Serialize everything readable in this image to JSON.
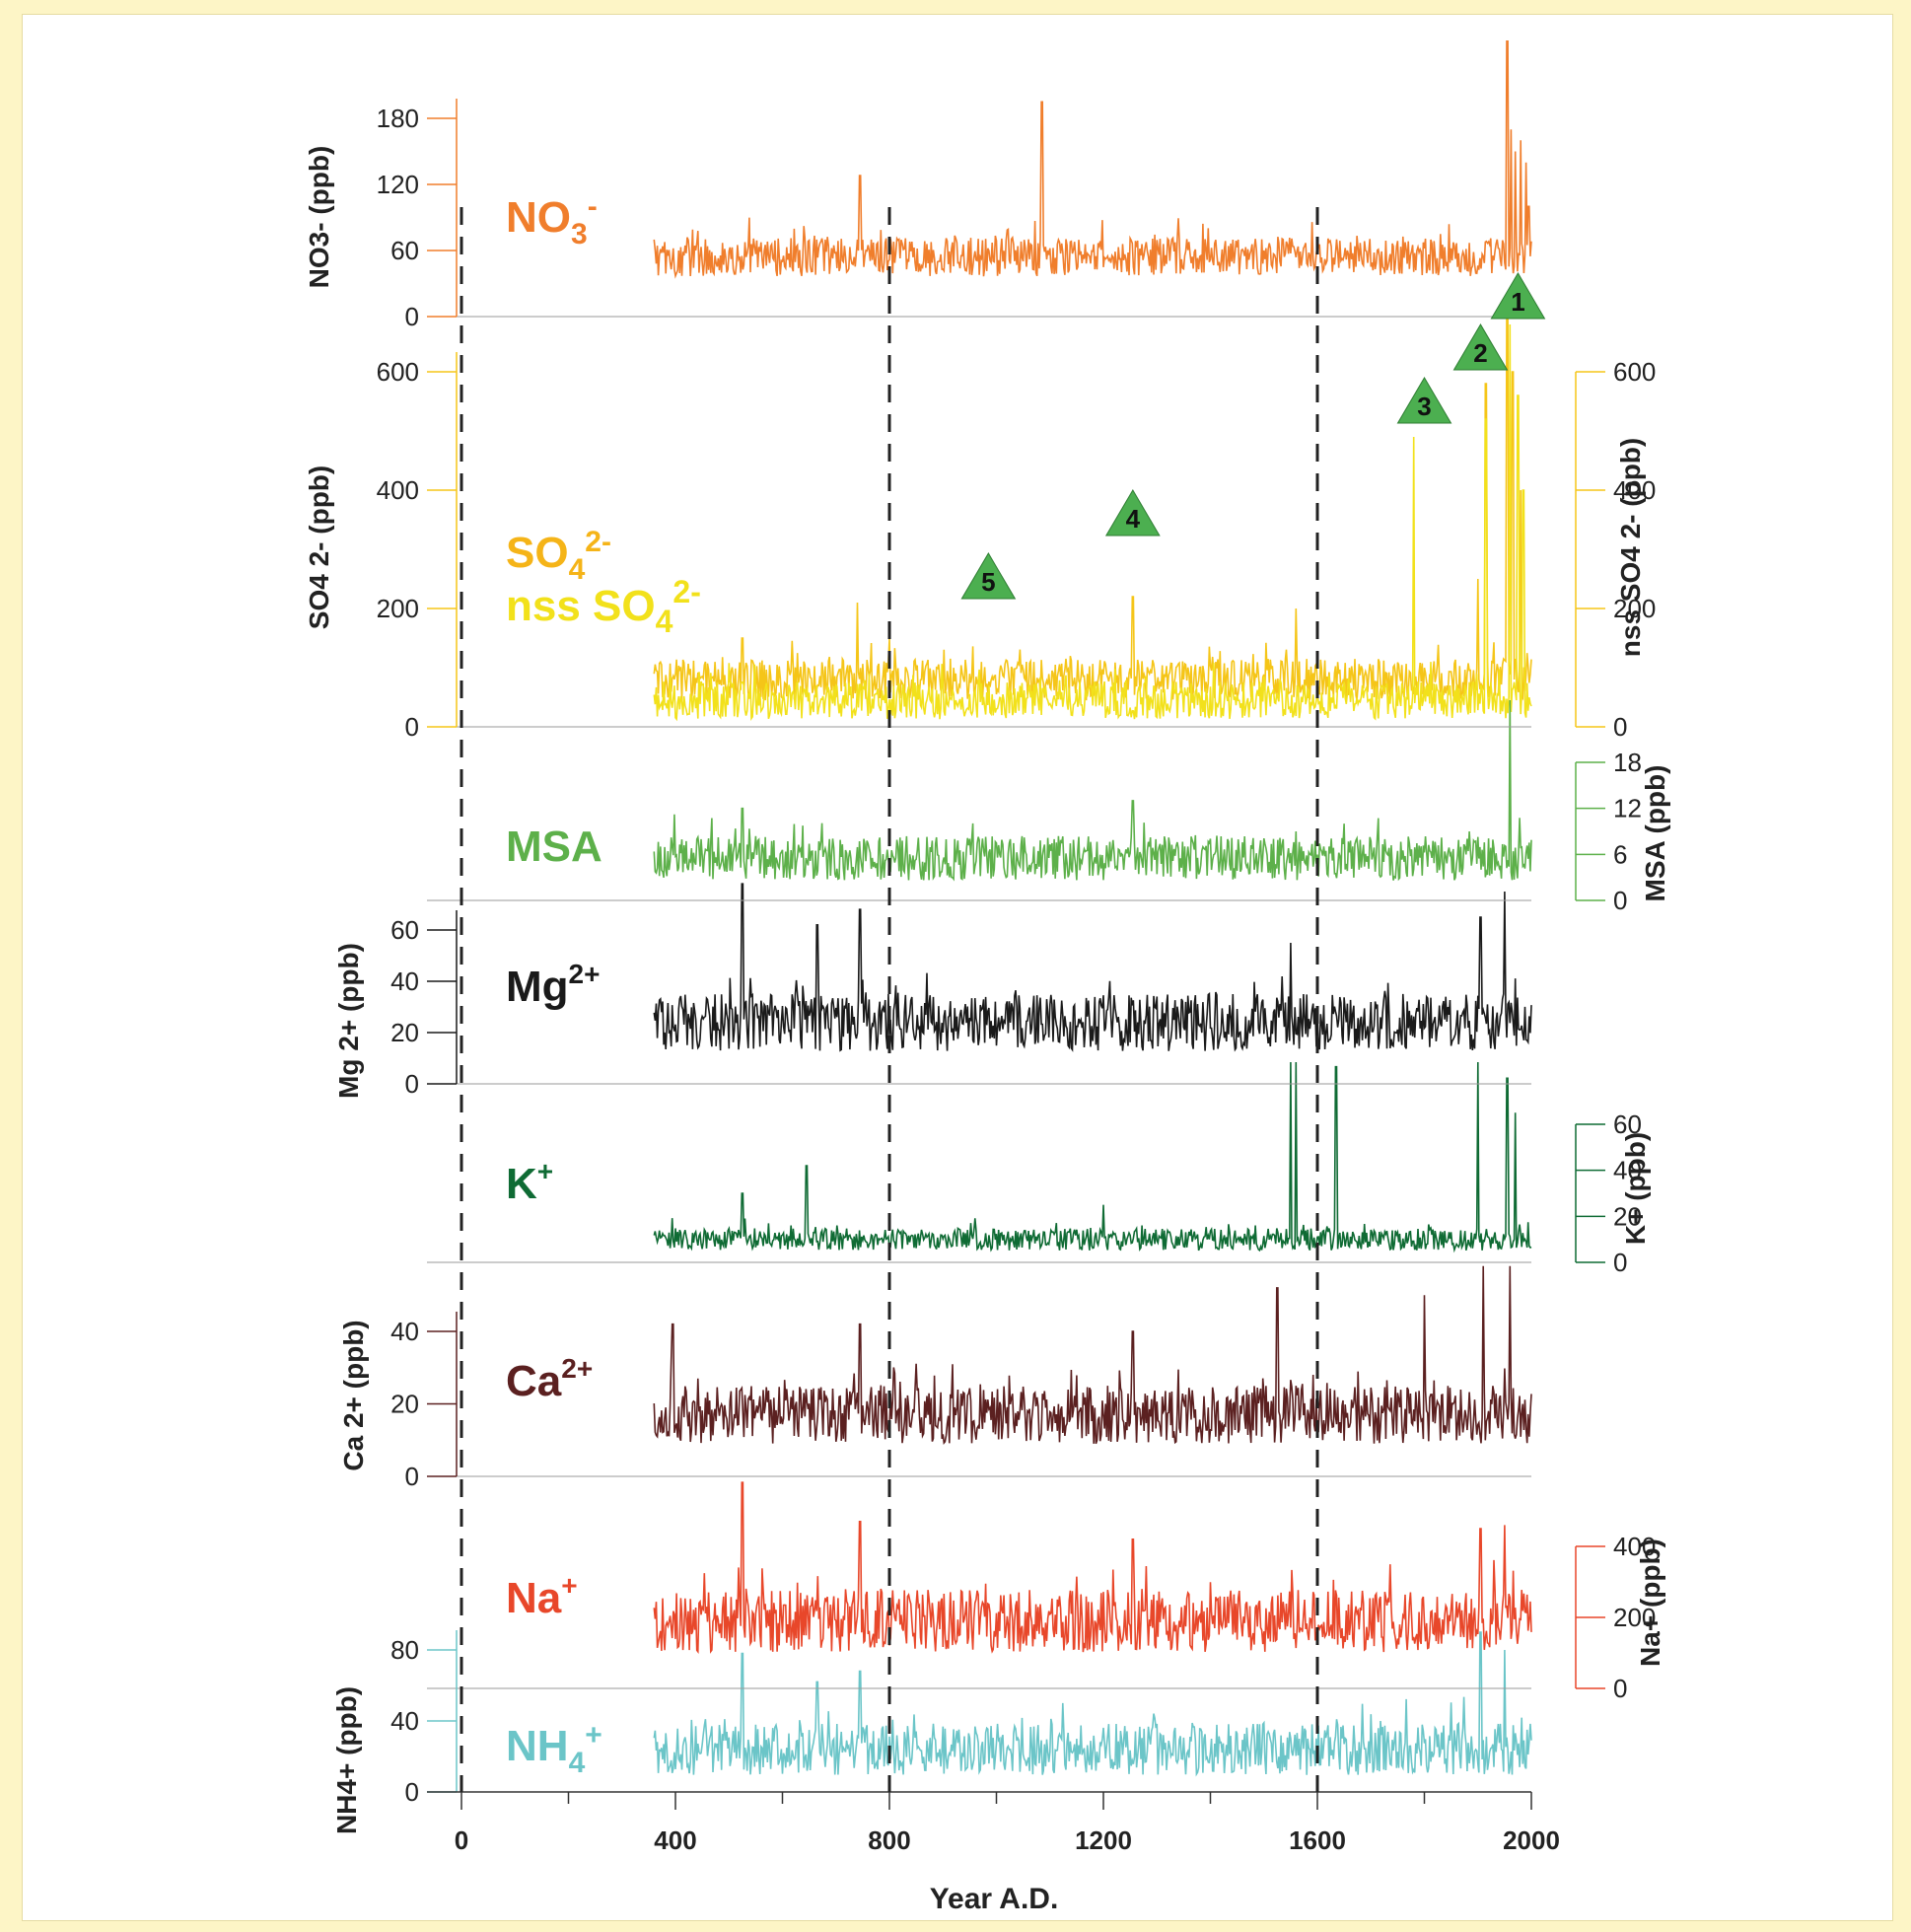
{
  "chart_data": {
    "type": "line",
    "xlabel": "Year A.D.",
    "xlim": [
      0,
      2000
    ],
    "xticks": [
      0,
      400,
      800,
      1200,
      1600,
      2000
    ],
    "x_tick_labels": [
      "0",
      "400",
      "800",
      "1200",
      "1600",
      "2000"
    ],
    "minor_x_ticks": [
      200,
      600,
      1000,
      1400,
      1800
    ],
    "dashed_reference_years": [
      0,
      800,
      1600
    ],
    "event_markers": [
      {
        "label": "1",
        "x": 1975,
        "y_panel": "NO3"
      },
      {
        "label": "2",
        "x": 1905,
        "y_panel": "SO4"
      },
      {
        "label": "3",
        "x": 1800,
        "y_panel": "SO4"
      },
      {
        "label": "4",
        "x": 1255,
        "y_panel": "SO4"
      },
      {
        "label": "5",
        "x": 985,
        "y_panel": "SO4"
      }
    ],
    "panels": [
      {
        "id": "NO3",
        "name": "NO3-",
        "name_html": [
          "NO",
          "3",
          "-"
        ],
        "axis_side": "left",
        "ylabel": "NO3- (ppb)",
        "ylim": [
          0,
          180
        ],
        "yticks": [
          0,
          60,
          120,
          180
        ],
        "color": "#f07e2c",
        "series": [
          {
            "name": "NO3-",
            "color": "#f07e2c",
            "baseline": 54,
            "noise": 11,
            "start": 360,
            "end": 2000,
            "spikes": [
              [
                745,
                128
              ],
              [
                1085,
                195
              ],
              [
                1955,
                250
              ],
              [
                1962,
                170
              ],
              [
                1970,
                150
              ],
              [
                1980,
                160
              ],
              [
                1990,
                140
              ],
              [
                1995,
                100
              ]
            ]
          }
        ]
      },
      {
        "id": "SO4",
        "name": "SO4 2-",
        "name2": "nss SO4 2-",
        "axis_side": "both",
        "ylabel": "SO4 2- (ppb)",
        "ylabel_right": "nss SO4 2- (ppb)",
        "ylim": [
          0,
          600
        ],
        "yticks": [
          0,
          200,
          400,
          600
        ],
        "color": "#f5c518",
        "series": [
          {
            "name": "SO4 2-",
            "color": "#f5c518",
            "baseline": 80,
            "noise": 22,
            "start": 360,
            "end": 2000,
            "spikes": [
              [
                525,
                150
              ],
              [
                740,
                210
              ],
              [
                1255,
                220
              ],
              [
                1560,
                200
              ],
              [
                1900,
                250
              ],
              [
                1915,
                580
              ],
              [
                1955,
                700
              ],
              [
                1965,
                600
              ],
              [
                1980,
                400
              ]
            ]
          },
          {
            "name": "nss SO4 2-",
            "color": "#f2e11b",
            "baseline": 45,
            "noise": 20,
            "start": 360,
            "end": 2000,
            "spikes": [
              [
                1780,
                490
              ],
              [
                1915,
                520
              ],
              [
                1960,
                680
              ],
              [
                1975,
                560
              ],
              [
                1985,
                400
              ]
            ]
          }
        ]
      },
      {
        "id": "MSA",
        "name": "MSA",
        "axis_side": "right",
        "ylabel_right": "MSA (ppb)",
        "ylim": [
          0,
          18
        ],
        "yticks": [
          0,
          6,
          12,
          18
        ],
        "color": "#5db04a",
        "series": [
          {
            "name": "MSA",
            "color": "#5db04a",
            "baseline": 5.5,
            "noise": 1.8,
            "start": 360,
            "end": 2000,
            "spikes": [
              [
                525,
                12
              ],
              [
                1255,
                13
              ],
              [
                1560,
                9
              ],
              [
                1960,
                28
              ]
            ]
          }
        ]
      },
      {
        "id": "Mg",
        "name": "Mg2+",
        "axis_side": "left",
        "ylabel": "Mg 2+ (ppb)",
        "ylim": [
          0,
          60
        ],
        "yticks": [
          0,
          20,
          40,
          60
        ],
        "color": "#1a1a1a",
        "series": [
          {
            "name": "Mg2+",
            "color": "#1a1a1a",
            "baseline": 24,
            "noise": 7,
            "start": 360,
            "end": 2000,
            "spikes": [
              [
                525,
                78
              ],
              [
                665,
                62
              ],
              [
                745,
                68
              ],
              [
                1550,
                55
              ],
              [
                1905,
                65
              ],
              [
                1950,
                75
              ]
            ]
          }
        ]
      },
      {
        "id": "K",
        "name": "K+",
        "axis_side": "right",
        "ylabel_right": "K+ (ppb)",
        "ylim": [
          0,
          60
        ],
        "yticks": [
          0,
          20,
          40,
          60
        ],
        "color": "#0f6b34",
        "series": [
          {
            "name": "K+",
            "color": "#0f6b34",
            "baseline": 10,
            "noise": 3,
            "start": 360,
            "end": 2000,
            "spikes": [
              [
                525,
                30
              ],
              [
                645,
                42
              ],
              [
                1200,
                25
              ],
              [
                1550,
                95
              ],
              [
                1560,
                95
              ],
              [
                1635,
                85
              ],
              [
                1900,
                95
              ],
              [
                1955,
                80
              ],
              [
                1970,
                65
              ]
            ]
          }
        ]
      },
      {
        "id": "Ca",
        "name": "Ca2+",
        "axis_side": "left",
        "ylabel": "Ca 2+ (ppb)",
        "ylim": [
          0,
          40
        ],
        "yticks": [
          0,
          20,
          40
        ],
        "color": "#5b2020",
        "series": [
          {
            "name": "Ca2+",
            "color": "#5b2020",
            "baseline": 17,
            "noise": 5,
            "start": 360,
            "end": 2000,
            "spikes": [
              [
                395,
                42
              ],
              [
                745,
                42
              ],
              [
                1255,
                40
              ],
              [
                1525,
                52
              ],
              [
                1800,
                50
              ],
              [
                1910,
                65
              ],
              [
                1960,
                60
              ]
            ]
          }
        ]
      },
      {
        "id": "Na",
        "name": "Na+",
        "axis_side": "right",
        "ylabel_right": "Na+ (ppb)",
        "ylim": [
          0,
          400
        ],
        "yticks": [
          0,
          200,
          400
        ],
        "color": "#e8472a",
        "series": [
          {
            "name": "Na+",
            "color": "#e8472a",
            "baseline": 190,
            "noise": 55,
            "start": 360,
            "end": 2000,
            "spikes": [
              [
                525,
                620
              ],
              [
                745,
                470
              ],
              [
                1255,
                420
              ],
              [
                1905,
                450
              ],
              [
                1950,
                460
              ]
            ]
          }
        ]
      },
      {
        "id": "NH4",
        "name": "NH4+",
        "axis_side": "left",
        "ylabel": "NH4+ (ppb)",
        "ylim": [
          0,
          80
        ],
        "yticks": [
          0,
          40,
          80
        ],
        "color": "#6bc5c8",
        "series": [
          {
            "name": "NH4+",
            "color": "#6bc5c8",
            "baseline": 24,
            "noise": 9,
            "start": 360,
            "end": 2000,
            "spikes": [
              [
                525,
                78
              ],
              [
                665,
                62
              ],
              [
                745,
                68
              ],
              [
                1905,
                90
              ],
              [
                1950,
                80
              ]
            ]
          }
        ]
      }
    ]
  },
  "labels": {
    "no3_main": "NO",
    "no3_sub": "3",
    "no3_sup": "-",
    "so4_main": "SO",
    "so4_sub": "4",
    "so4_sup": "2-",
    "nss_main": "nss SO",
    "nss_sub": "4",
    "nss_sup": "2-",
    "msa": "MSA",
    "mg_main": "Mg",
    "mg_sup": "2+",
    "k_main": "K",
    "k_sup": "+",
    "ca_main": "Ca",
    "ca_sup": "2+",
    "na_main": "Na",
    "na_sup": "+",
    "nh4_main": "NH",
    "nh4_sub": "4",
    "nh4_sup": "+",
    "ylab_no3": "NO3- (ppb)",
    "ylab_so4": "SO4 2- (ppb)",
    "ylab_nss": "nss SO4 2- (ppb)",
    "ylab_msa": "MSA (ppb)",
    "ylab_mg": "Mg 2+ (ppb)",
    "ylab_k": "K+ (ppb)",
    "ylab_ca": "Ca 2+ (ppb)",
    "ylab_na": "Na+ (ppb)",
    "ylab_nh4": "NH4+ (ppb)",
    "xlabel": "Year A.D."
  }
}
